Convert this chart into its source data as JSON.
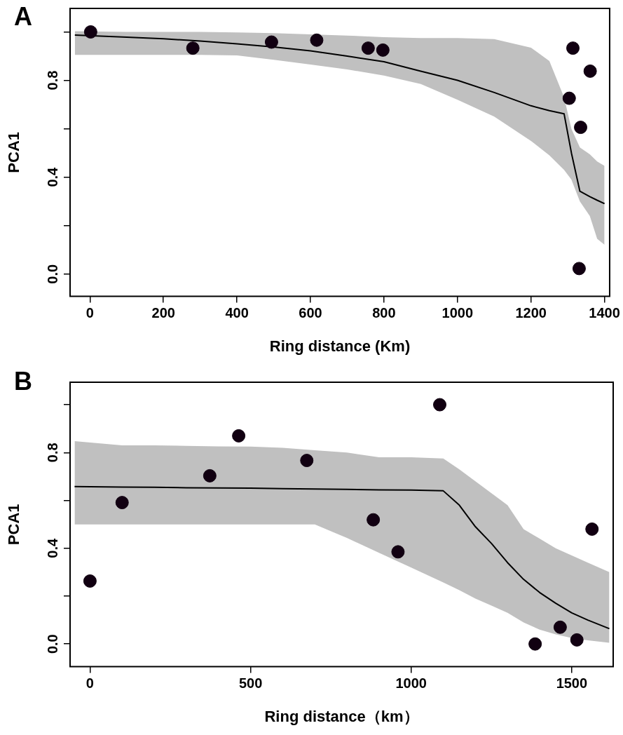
{
  "chart_data": [
    {
      "type": "scatter",
      "title": "A",
      "xlabel": "Ring distance (Km)",
      "ylabel": "PCA1",
      "xlim": [
        -54,
        1414
      ],
      "ylim": [
        -0.092,
        1.097
      ],
      "xticks": [
        0,
        200,
        400,
        600,
        800,
        1000,
        1200,
        1400
      ],
      "yticks": [
        {
          "value": 0,
          "label": "0.0"
        },
        {
          "value": 0.2,
          "label": null
        },
        {
          "value": 0.4,
          "label": "0.4"
        },
        {
          "value": 0.6,
          "label": null
        },
        {
          "value": 0.8,
          "label": "0.8"
        },
        {
          "value": 1.0,
          "label": null
        }
      ],
      "series": [
        {
          "type": "line",
          "marker": "none",
          "color": "#000000",
          "x": [
            -41,
            100,
            200,
            300,
            400,
            500,
            600,
            700,
            800,
            900,
            1000,
            1100,
            1200,
            1250,
            1290,
            1310,
            1333,
            1360,
            1380,
            1400
          ],
          "values": [
            0.987,
            0.978,
            0.972,
            0.962,
            0.951,
            0.938,
            0.922,
            0.9,
            0.877,
            0.838,
            0.8,
            0.75,
            0.695,
            0.675,
            0.662,
            0.5,
            0.342,
            0.32,
            0.305,
            0.291
          ],
          "upper": [
            1.003,
            1.0,
            1.0,
            1.0,
            0.998,
            0.995,
            0.99,
            0.985,
            0.978,
            0.975,
            0.975,
            0.97,
            0.935,
            0.88,
            0.73,
            0.6,
            0.523,
            0.495,
            0.465,
            0.447
          ],
          "lower": [
            0.905,
            0.905,
            0.905,
            0.905,
            0.903,
            0.885,
            0.865,
            0.845,
            0.82,
            0.785,
            0.72,
            0.65,
            0.55,
            0.49,
            0.43,
            0.39,
            0.3,
            0.24,
            0.146,
            0.121
          ]
        },
        {
          "marker": "circle",
          "color": "#110011",
          "x": [
            2,
            280,
            494,
            617,
            757,
            797,
            1314,
            1361,
            1304,
            1335,
            1331
          ],
          "values": [
            1.0,
            0.933,
            0.958,
            0.966,
            0.933,
            0.925,
            0.933,
            0.838,
            0.726,
            0.606,
            0.023
          ]
        }
      ]
    },
    {
      "type": "scatter",
      "title": "B",
      "xlabel": "Ring distance（km）",
      "ylabel": "PCA1",
      "xlim": [
        -62,
        1629
      ],
      "ylim": [
        -0.095,
        1.094
      ],
      "xticks": [
        0,
        500,
        1000,
        1500
      ],
      "yticks": [
        {
          "value": 0,
          "label": "0.0"
        },
        {
          "value": 0.2,
          "label": null
        },
        {
          "value": 0.4,
          "label": "0.4"
        },
        {
          "value": 0.6,
          "label": null
        },
        {
          "value": 0.8,
          "label": "0.8"
        },
        {
          "value": 1.0,
          "label": null
        }
      ],
      "series": [
        {
          "type": "line",
          "marker": "none",
          "color": "#000000",
          "x": [
            -48,
            100,
            200,
            300,
            400,
            500,
            600,
            700,
            800,
            900,
            1000,
            1100,
            1150,
            1200,
            1250,
            1300,
            1350,
            1400,
            1450,
            1500,
            1550,
            1617
          ],
          "values": [
            0.658,
            0.656,
            0.655,
            0.653,
            0.652,
            0.651,
            0.649,
            0.648,
            0.646,
            0.644,
            0.643,
            0.64,
            0.58,
            0.49,
            0.42,
            0.34,
            0.27,
            0.215,
            0.17,
            0.13,
            0.1,
            0.064
          ],
          "upper": [
            0.848,
            0.83,
            0.83,
            0.828,
            0.826,
            0.825,
            0.82,
            0.81,
            0.8,
            0.78,
            0.78,
            0.775,
            0.73,
            0.68,
            0.63,
            0.58,
            0.48,
            0.44,
            0.4,
            0.37,
            0.34,
            0.3
          ],
          "lower": [
            0.5,
            0.5,
            0.5,
            0.5,
            0.5,
            0.5,
            0.5,
            0.5,
            0.443,
            0.381,
            0.319,
            0.257,
            0.225,
            0.19,
            0.16,
            0.13,
            0.09,
            0.06,
            0.04,
            0.025,
            0.015,
            0.005
          ]
        },
        {
          "marker": "circle",
          "color": "#110011",
          "x": [
            0,
            100,
            373,
            463,
            675,
            882,
            959,
            1089,
            1386,
            1464,
            1516,
            1563
          ],
          "values": [
            0.263,
            0.591,
            0.703,
            0.87,
            0.767,
            0.519,
            0.385,
            1.0,
            0.0,
            0.07,
            0.017,
            0.48
          ]
        }
      ]
    }
  ]
}
